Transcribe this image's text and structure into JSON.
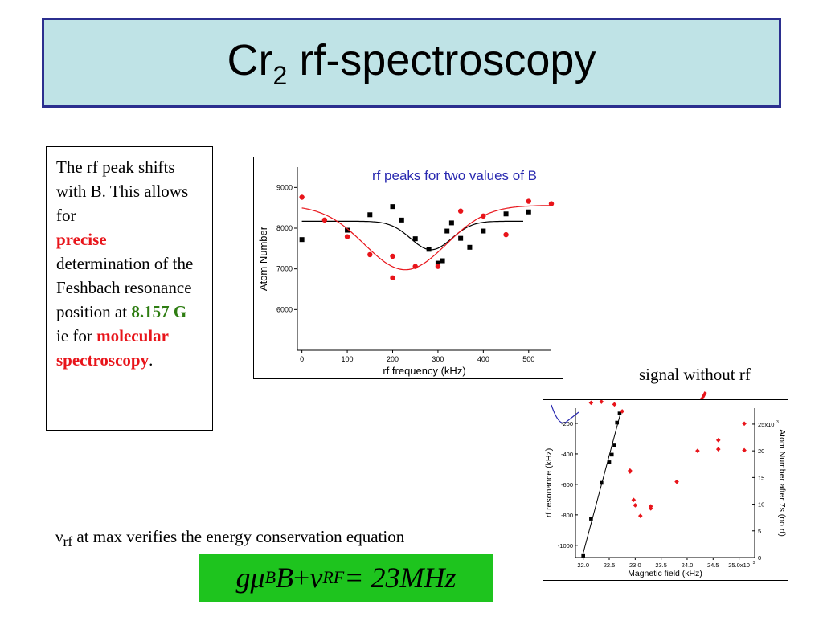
{
  "title": {
    "main": "Cr",
    "sub": "2",
    "rest": " rf-spectroscopy"
  },
  "text_box": {
    "p1": "The rf peak shifts with B. This allows for",
    "p2": "precise",
    "p3": "determination of the Feshbach resonance position at",
    "p4": "8.157 G",
    "p5": "ie for",
    "p6": "molecular spectroscopy",
    "p7": "."
  },
  "annotation": "signal without rf",
  "equation_text": {
    "nu": "ν",
    "sub": "rf",
    "rest": " at max verifies the energy conservation equation"
  },
  "equation": {
    "g": "g",
    "mu": "μ",
    "b_sub": "B",
    "B": "B",
    "plus": " + ",
    "nu": "ν",
    "rf_sub": "RF",
    "rhs": " = 23MHz"
  },
  "colors": {
    "title_bg": "#bfe3e6",
    "title_border": "#2b2f8f",
    "red": "#e8141a",
    "green": "#2e7d12",
    "eq_bg": "#1ec41e",
    "blue_title": "#2a2ab0"
  },
  "chart_data": [
    {
      "type": "scatter",
      "title": "rf peaks for two values of B",
      "xlabel": "rf frequency (kHz)",
      "ylabel": "Atom Number",
      "xlim": [
        -10,
        550
      ],
      "ylim": [
        5000,
        9500
      ],
      "xticks": [
        0,
        100,
        200,
        300,
        400,
        500
      ],
      "yticks": [
        6000,
        7000,
        8000,
        9000
      ],
      "series": [
        {
          "marker": "square",
          "color": "#000000",
          "x": [
            0,
            100,
            150,
            200,
            220,
            250,
            280,
            300,
            310,
            320,
            330,
            350,
            370,
            400,
            450,
            500
          ],
          "y": [
            7720,
            7950,
            8330,
            8530,
            8200,
            7740,
            7480,
            7140,
            7200,
            7930,
            8130,
            7750,
            7530,
            7930,
            8350,
            8400
          ],
          "fit": {
            "baseline": 8170,
            "depth": 700,
            "center": 285,
            "width": 45,
            "x_range": [
              0,
              490
            ]
          }
        },
        {
          "marker": "circle",
          "color": "#e8141a",
          "x": [
            0,
            50,
            100,
            150,
            200,
            200,
            250,
            300,
            350,
            400,
            450,
            500,
            550
          ],
          "y": [
            8760,
            8200,
            7790,
            7350,
            7310,
            6780,
            7060,
            7060,
            8420,
            8300,
            7840,
            8660,
            8600
          ],
          "fit": {
            "baseline": 8560,
            "depth": 1580,
            "center": 228,
            "width": 90,
            "x_range": [
              0,
              550
            ]
          }
        }
      ]
    },
    {
      "type": "scatter",
      "title": "",
      "xlabel": "Magnetic field (kHz)",
      "ylabel": "rf resonance (kHz)",
      "y2label": "Atom Number after 7s (no rf)",
      "xticks": [
        "22.0",
        "22.5",
        "23.0",
        "23.5",
        "24.0",
        "24.5",
        "25.0x10"
      ],
      "x_exp": "3",
      "yticks": [
        "-200",
        "-400",
        "-600",
        "-800",
        "-1000"
      ],
      "y2ticks": [
        "0",
        "5",
        "10",
        "15",
        "20",
        "25x10"
      ],
      "y2_exp": "3",
      "xlim": [
        21.85,
        25.3
      ],
      "ylim": [
        -1080,
        -100
      ],
      "y2lim": [
        0,
        28
      ],
      "series": [
        {
          "marker": "square",
          "color": "#000000",
          "x": [
            22.0,
            22.15,
            22.35,
            22.5,
            22.55,
            22.6,
            22.65,
            22.7
          ],
          "y": [
            -1065,
            -825,
            -590,
            -455,
            -405,
            -345,
            -195,
            -135
          ]
        },
        {
          "marker": "diamond",
          "color": "#e8141a",
          "axis": "y2",
          "x": [
            22.15,
            22.35,
            22.6,
            22.75,
            22.9,
            22.9,
            22.97,
            23.0,
            23.1,
            23.3,
            23.3,
            23.8,
            24.2,
            24.6,
            24.6,
            25.1,
            25.1
          ],
          "y2": [
            29,
            29.2,
            28.7,
            27.4,
            16.3,
            16.1,
            10.8,
            9.8,
            7.8,
            9.6,
            9.2,
            14.2,
            20,
            22,
            20.3,
            25.1,
            20.1
          ]
        }
      ],
      "fit_line": {
        "x": [
          21.98,
          22.72
        ],
        "y": [
          -1075,
          -130
        ]
      },
      "inset_curve_color": "#2a2ab0"
    }
  ]
}
